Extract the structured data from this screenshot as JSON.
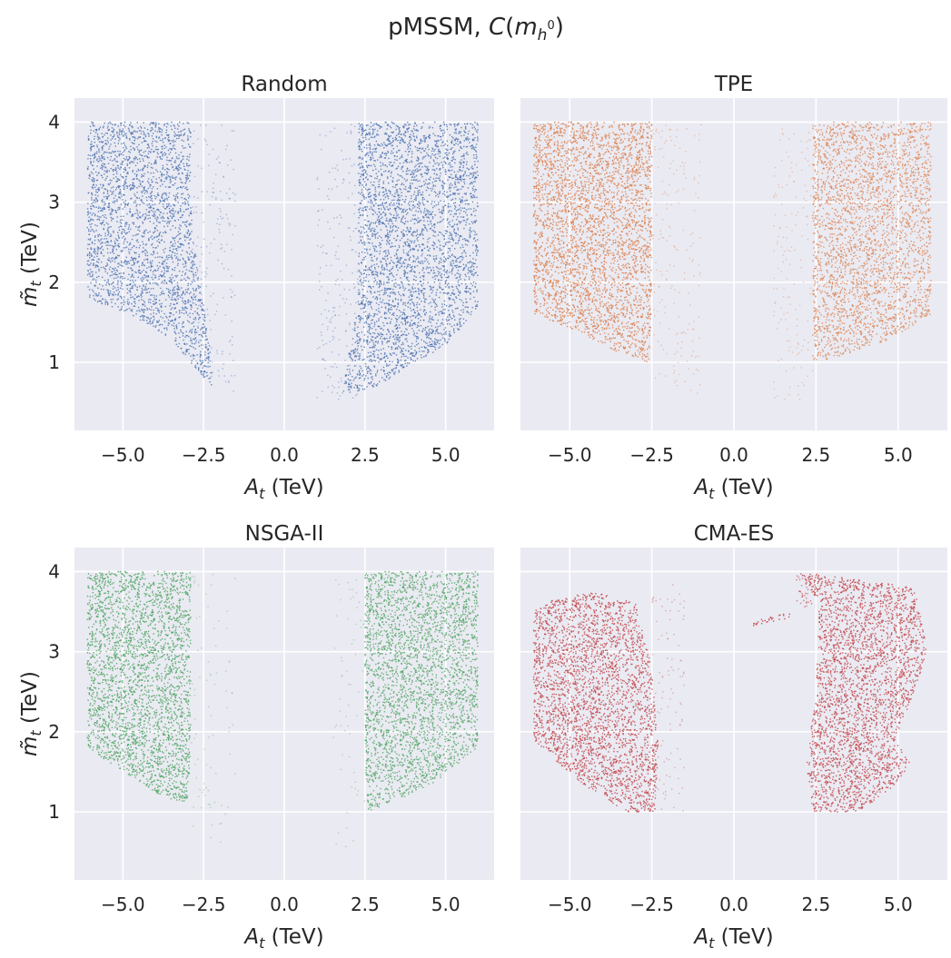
{
  "chart_data": {
    "suptitle": "pMSSM, C(m_h⁰)",
    "suptitle_prefix": "pMSSM, ",
    "suptitle_c": "C",
    "suptitle_m": "m",
    "suptitle_sub": "h",
    "suptitle_sup": "0",
    "xlabel_var": "A",
    "xlabel_sub": "t",
    "xlabel_unit": " (TeV)",
    "ylabel_var": "m̃",
    "ylabel_sub": "t",
    "ylabel_unit": " (TeV)",
    "xlim": [
      -6.5,
      6.5
    ],
    "ylim": [
      0.15,
      4.3
    ],
    "xticks": [
      -5.0,
      -2.5,
      0.0,
      2.5,
      5.0
    ],
    "xtick_labels": [
      "−5.0",
      "−2.5",
      "0.0",
      "2.5",
      "5.0"
    ],
    "yticks": [
      1,
      2,
      3,
      4
    ],
    "ytick_labels": [
      "1",
      "2",
      "3",
      "4"
    ],
    "panels": [
      {
        "type": "scatter",
        "title": "Random",
        "color": "#4C72B0",
        "regions": [
          {
            "polygon": [
              [
                -6.1,
                4.0
              ],
              [
                -2.9,
                4.0
              ],
              [
                -2.9,
                3.0
              ],
              [
                -2.7,
                2.2
              ],
              [
                -2.3,
                1.2
              ],
              [
                -2.2,
                0.7
              ],
              [
                -2.5,
                0.8
              ],
              [
                -3.5,
                1.3
              ],
              [
                -4.8,
                1.6
              ],
              [
                -6.1,
                1.8
              ]
            ],
            "density": 0.9
          },
          {
            "polygon": [
              [
                2.3,
                4.0
              ],
              [
                6.0,
                4.0
              ],
              [
                6.0,
                1.7
              ],
              [
                5.0,
                1.2
              ],
              [
                4.0,
                1.0
              ],
              [
                2.9,
                0.7
              ],
              [
                1.8,
                0.6
              ],
              [
                2.0,
                1.1
              ],
              [
                2.3,
                1.8
              ],
              [
                2.3,
                3.0
              ]
            ],
            "density": 0.9
          },
          {
            "polygon": [
              [
                -2.9,
                4.0
              ],
              [
                -1.5,
                4.0
              ],
              [
                -1.5,
                0.5
              ],
              [
                -2.9,
                1.0
              ]
            ],
            "density": 0.12
          },
          {
            "polygon": [
              [
                1.0,
                4.0
              ],
              [
                2.3,
                4.0
              ],
              [
                2.3,
                0.5
              ],
              [
                1.0,
                0.5
              ]
            ],
            "density": 0.12
          }
        ]
      },
      {
        "type": "scatter",
        "title": "TPE",
        "color": "#DD8452",
        "regions": [
          {
            "polygon": [
              [
                -6.1,
                4.0
              ],
              [
                -2.5,
                4.0
              ],
              [
                -2.5,
                1.7
              ],
              [
                -2.6,
                1.0
              ],
              [
                -3.4,
                1.1
              ],
              [
                -4.8,
                1.4
              ],
              [
                -6.1,
                1.6
              ]
            ],
            "density": 1.0
          },
          {
            "polygon": [
              [
                2.4,
                4.0
              ],
              [
                6.0,
                4.0
              ],
              [
                6.0,
                1.6
              ],
              [
                4.8,
                1.3
              ],
              [
                3.5,
                1.1
              ],
              [
                2.4,
                1.0
              ]
            ],
            "density": 0.85
          },
          {
            "polygon": [
              [
                -2.5,
                4.0
              ],
              [
                -1.0,
                4.0
              ],
              [
                -1.0,
                0.6
              ],
              [
                -2.6,
                0.8
              ]
            ],
            "density": 0.1
          },
          {
            "polygon": [
              [
                1.2,
                4.0
              ],
              [
                2.4,
                4.0
              ],
              [
                2.4,
                0.5
              ],
              [
                1.2,
                0.5
              ]
            ],
            "density": 0.1
          }
        ]
      },
      {
        "type": "scatter",
        "title": "NSGA-II",
        "color": "#55A868",
        "regions": [
          {
            "polygon": [
              [
                -6.1,
                4.0
              ],
              [
                -2.9,
                4.0
              ],
              [
                -2.9,
                1.9
              ],
              [
                -3.0,
                1.1
              ],
              [
                -3.8,
                1.2
              ],
              [
                -5.0,
                1.5
              ],
              [
                -6.1,
                1.8
              ]
            ],
            "density": 1.0
          },
          {
            "polygon": [
              [
                2.5,
                4.0
              ],
              [
                6.0,
                4.0
              ],
              [
                6.0,
                1.8
              ],
              [
                4.8,
                1.4
              ],
              [
                3.8,
                1.2
              ],
              [
                2.6,
                1.0
              ],
              [
                2.5,
                1.6
              ]
            ],
            "density": 0.95
          },
          {
            "polygon": [
              [
                -2.9,
                4.0
              ],
              [
                -1.5,
                4.0
              ],
              [
                -1.5,
                0.5
              ],
              [
                -2.9,
                0.8
              ]
            ],
            "density": 0.05
          },
          {
            "polygon": [
              [
                1.5,
                4.0
              ],
              [
                2.5,
                4.0
              ],
              [
                2.5,
                0.5
              ],
              [
                1.5,
                0.5
              ]
            ],
            "density": 0.05
          }
        ]
      },
      {
        "type": "scatter",
        "title": "CMA-ES",
        "color": "#C44E52",
        "regions": [
          {
            "polygon": [
              [
                -6.1,
                3.5
              ],
              [
                -5.5,
                3.65
              ],
              [
                -4.2,
                3.75
              ],
              [
                -3.0,
                3.6
              ],
              [
                -2.5,
                2.8
              ],
              [
                -2.3,
                1.8
              ],
              [
                -2.4,
                1.0
              ],
              [
                -3.3,
                1.0
              ],
              [
                -4.8,
                1.4
              ],
              [
                -6.1,
                1.9
              ]
            ],
            "density": 1.0
          },
          {
            "polygon": [
              [
                2.0,
                4.0
              ],
              [
                5.5,
                3.8
              ],
              [
                5.9,
                3.0
              ],
              [
                5.3,
                2.3
              ],
              [
                4.9,
                1.9
              ],
              [
                5.4,
                1.6
              ],
              [
                4.8,
                1.3
              ],
              [
                3.8,
                1.0
              ],
              [
                2.4,
                1.0
              ],
              [
                2.2,
                1.6
              ],
              [
                2.5,
                2.5
              ],
              [
                2.6,
                3.6
              ]
            ],
            "density": 1.0
          },
          {
            "polygon": [
              [
                0.6,
                3.38
              ],
              [
                1.7,
                3.5
              ],
              [
                1.7,
                3.42
              ],
              [
                0.6,
                3.32
              ]
            ],
            "density": 1.0
          },
          {
            "polygon": [
              [
                1.9,
                3.95
              ],
              [
                2.4,
                3.95
              ],
              [
                2.4,
                3.55
              ],
              [
                1.9,
                3.55
              ]
            ],
            "density": 0.6
          },
          {
            "polygon": [
              [
                -2.5,
                3.9
              ],
              [
                -1.5,
                3.9
              ],
              [
                -1.5,
                1.0
              ],
              [
                -2.5,
                1.0
              ]
            ],
            "density": 0.1
          }
        ]
      }
    ]
  }
}
